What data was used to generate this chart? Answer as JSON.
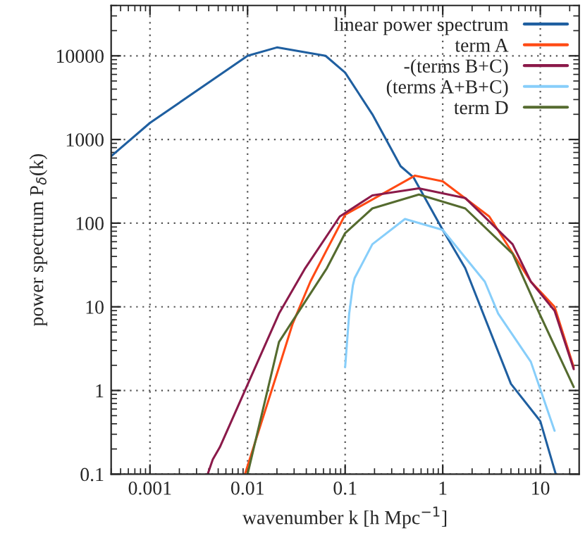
{
  "chart_data": {
    "type": "line",
    "xlabel": "wavenumber k [h Mpc$^{−1}$]",
    "ylabel": "power spectrum P$_{δ}$(k)",
    "log": "xy",
    "grid": true,
    "legend": "top right",
    "line_style": "solid",
    "marker": "none",
    "xlim": [
      0.0004,
      25
    ],
    "ylim": [
      0.1,
      40000
    ],
    "xticks": [
      0.001,
      0.01,
      0.1,
      1,
      10
    ],
    "yticks": [
      0.1,
      1,
      10,
      100,
      1000,
      10000
    ],
    "series": [
      {
        "name": "linear power spectrum",
        "color": "#1f5fa0",
        "x": [
          0.0004,
          0.001,
          0.01,
          0.02,
          0.063,
          0.1,
          0.19,
          0.37,
          0.5,
          1,
          1.7,
          5,
          10,
          14.4
        ],
        "values": [
          630,
          1580,
          10000,
          12600,
          10000,
          6300,
          2000,
          480,
          355,
          83,
          29,
          1.2,
          0.43,
          0.1
        ]
      },
      {
        "name": "term A",
        "color": "#ff4a14",
        "x": [
          0.0094,
          0.021,
          0.029,
          0.044,
          0.063,
          0.1,
          0.52,
          1,
          3,
          8,
          14,
          22
        ],
        "values": [
          0.1,
          1.9,
          6.3,
          20,
          45,
          126,
          370,
          316,
          120,
          20,
          10,
          1.9
        ]
      },
      {
        "name": "-(terms B+C)",
        "color": "#8b1a4a",
        "x": [
          0.0039,
          0.0044,
          0.0052,
          0.0094,
          0.021,
          0.039,
          0.088,
          0.19,
          0.57,
          1.7,
          5.2,
          8,
          14,
          22
        ],
        "values": [
          0.1,
          0.15,
          0.21,
          1,
          8.3,
          29,
          120,
          215,
          260,
          200,
          56,
          20,
          9,
          1.8
        ]
      },
      {
        "name": "(terms A+B+C)",
        "color": "#87cefa",
        "x": [
          0.1,
          0.11,
          0.12,
          0.125,
          0.19,
          0.41,
          1,
          2.7,
          3.7,
          8,
          14
        ],
        "values": [
          1.9,
          8.3,
          18,
          22,
          56,
          112,
          83,
          20,
          8.3,
          2.2,
          0.33
        ]
      },
      {
        "name": "term D",
        "color": "#556b2f",
        "x": [
          0.01,
          0.021,
          0.065,
          0.1,
          0.19,
          0.57,
          1.7,
          5.2,
          9.1,
          22
        ],
        "values": [
          0.1,
          3.8,
          29,
          76,
          150,
          220,
          150,
          43,
          10,
          1.1
        ]
      }
    ]
  }
}
